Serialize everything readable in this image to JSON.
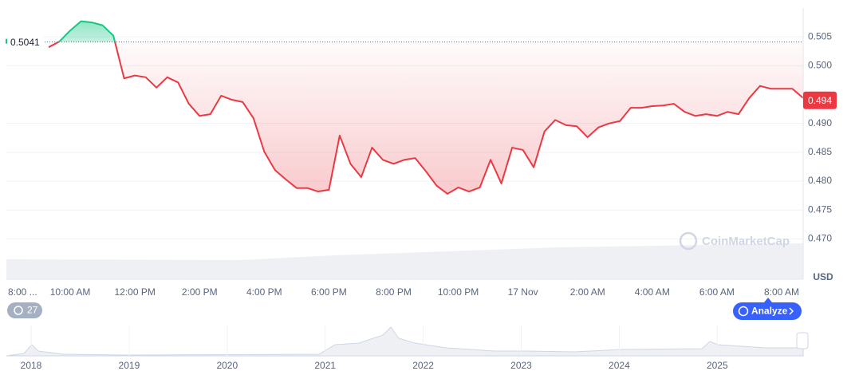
{
  "chart_data": {
    "type": "line",
    "categories": [
      "8:00 ...",
      null,
      null,
      null,
      null,
      null,
      "10:00 AM",
      null,
      null,
      null,
      null,
      null,
      "12:00 PM",
      null,
      null,
      null,
      null,
      null,
      "2:00 PM",
      null,
      null,
      null,
      null,
      null,
      "4:00 PM",
      null,
      null,
      null,
      null,
      null,
      "6:00 PM",
      null,
      null,
      null,
      null,
      null,
      "8:00 PM",
      null,
      null,
      null,
      null,
      null,
      "10:00 PM",
      null,
      null,
      null,
      null,
      null,
      "17 Nov",
      null,
      null,
      null,
      null,
      null,
      "2:00 AM",
      null,
      null,
      null,
      null,
      null,
      "4:00 AM",
      null,
      null,
      null,
      null,
      null,
      "6:00 AM",
      null,
      null,
      null,
      null,
      null,
      "8:00 AM",
      null,
      null
    ],
    "values": [
      null,
      null,
      null,
      null,
      0.5032,
      0.5042,
      0.5061,
      0.5077,
      0.5075,
      0.507,
      0.5052,
      0.4978,
      0.4983,
      0.498,
      0.4962,
      0.498,
      0.4971,
      0.4934,
      0.4913,
      0.4916,
      0.4948,
      0.4941,
      0.4937,
      0.4909,
      0.4851,
      0.4819,
      0.4803,
      0.4788,
      0.4788,
      0.4782,
      0.4785,
      0.4879,
      0.483,
      0.4807,
      0.4858,
      0.4837,
      0.483,
      0.4837,
      0.484,
      0.4817,
      0.4792,
      0.4778,
      0.4789,
      0.4782,
      0.4789,
      0.4837,
      0.4796,
      0.4858,
      0.4854,
      0.4824,
      0.4886,
      0.4906,
      0.4897,
      0.4895,
      0.4876,
      0.4893,
      0.49,
      0.4904,
      0.4927,
      0.4927,
      0.493,
      0.4931,
      0.4934,
      0.492,
      0.4913,
      0.4916,
      0.4913,
      0.492,
      0.4916,
      0.4944,
      0.4965,
      0.496,
      0.496,
      0.496,
      0.4944
    ],
    "colors": {
      "above": "#16c784",
      "below": "#ea3943"
    },
    "reference": 0.5041,
    "current_price": 0.494,
    "currency": "USD",
    "ylim": [
      0.463,
      0.51
    ],
    "yticks": [
      {
        "value": 0.47,
        "label": "0.470"
      },
      0.475,
      {
        "value": 0.48,
        "label": "0.480"
      },
      0.485,
      {
        "value": 0.49,
        "label": "0.490"
      },
      {
        "value": 0.5,
        "label": "0.500"
      },
      0.505
    ],
    "grid": true,
    "watermark": "CoinMarketCap",
    "history_count": 27,
    "analyze_button": "Analyze",
    "navigator_years": [
      "2018",
      "2019",
      "2020",
      "2021",
      "2022",
      "2023",
      "2024",
      "2025"
    ]
  }
}
